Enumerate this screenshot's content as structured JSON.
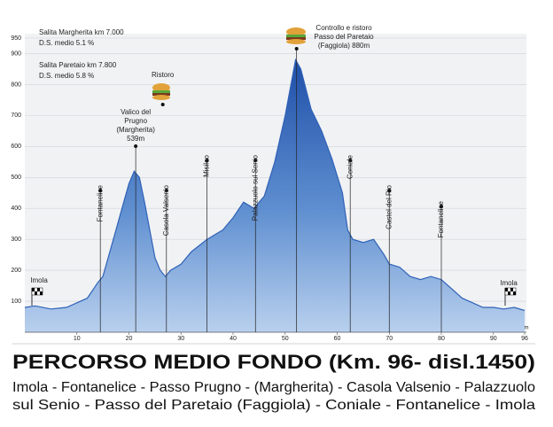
{
  "chart_data": {
    "type": "area",
    "x": [
      0,
      2,
      5,
      8,
      10,
      12,
      14,
      15,
      17,
      19,
      20,
      21,
      22,
      23,
      24,
      25,
      26,
      27,
      28,
      30,
      32,
      35,
      38,
      40,
      42,
      44,
      46,
      48,
      50,
      52,
      53,
      55,
      57,
      59,
      61,
      62,
      63,
      65,
      67,
      69,
      70,
      72,
      74,
      76,
      78,
      80,
      82,
      84,
      86,
      88,
      90,
      92,
      94,
      96
    ],
    "values": [
      80,
      85,
      75,
      80,
      95,
      110,
      160,
      180,
      300,
      420,
      480,
      520,
      500,
      420,
      330,
      240,
      200,
      180,
      200,
      220,
      260,
      300,
      330,
      370,
      420,
      400,
      440,
      550,
      700,
      880,
      850,
      720,
      650,
      560,
      450,
      330,
      300,
      290,
      300,
      250,
      220,
      210,
      180,
      170,
      180,
      170,
      140,
      110,
      95,
      80,
      80,
      75,
      80,
      70
    ],
    "color": "#2f62b8",
    "xlim": [
      0,
      96
    ],
    "ylim": [
      0,
      950
    ],
    "xticks": [
      10,
      20,
      30,
      40,
      50,
      60,
      70,
      80,
      90,
      96
    ],
    "yticks": [
      100,
      200,
      300,
      400,
      500,
      600,
      700,
      800,
      900,
      950
    ],
    "x_axis_label": "m",
    "grid": true,
    "notes": [
      "Salita Margherita km 7.000",
      "D.S. medio  5.1 %",
      "Salita Paretaio  km 7.800",
      "D.S. medio  5.8 %"
    ],
    "waypoints": [
      {
        "label": "Fontanelice",
        "x": 14.5
      },
      {
        "label": [
          "Valico del",
          "Prugno",
          "(Margherita)",
          "539m"
        ],
        "x": 21.3
      },
      {
        "label": "Ristoro",
        "x": 26.5
      },
      {
        "label": "Casola Valsenio",
        "x": 27.2
      },
      {
        "label": "Misileo",
        "x": 35
      },
      {
        "label": "Palazzuolo sul Senio",
        "x": 44.3
      },
      {
        "label": [
          "Controllo e ristoro",
          "Passo del Paretaio",
          "(Faggiola) 880m"
        ],
        "x": 52.2
      },
      {
        "label": "Coniale",
        "x": 62.5
      },
      {
        "label": "Castel del Rio",
        "x": 70
      },
      {
        "label": "Fontanelice",
        "x": 80
      }
    ],
    "end_labels": [
      "Imola",
      "Imola"
    ],
    "title": "PERCORSO MEDIO FONDO (Km. 96- disl.1450)",
    "subtitle": [
      "Imola - Fontanelice - Passo Prugno - (Margherita) - Casola Valsenio - Palazzuolo",
      "sul Senio - Passo del Paretaio (Faggiola) - Coniale -  Fontanelice - Imola"
    ]
  }
}
